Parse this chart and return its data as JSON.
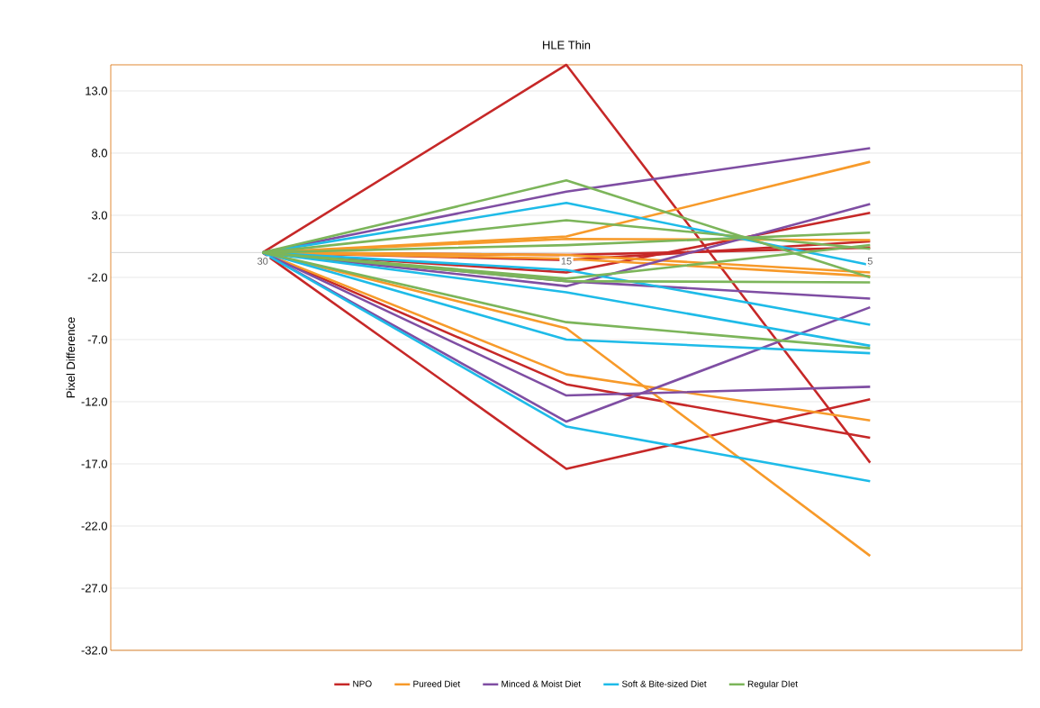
{
  "chart_data": {
    "type": "line",
    "title": "HLE Thin",
    "ylabel": "Pixel Difference",
    "categories": [
      "30",
      "15",
      "5"
    ],
    "series": [
      {
        "name": "NPO",
        "color": "#c62828",
        "values": [
          0,
          15.1,
          -16.9
        ]
      },
      {
        "color": "#c62828",
        "values": [
          0,
          -17.4,
          -11.8
        ]
      },
      {
        "color": "#c62828",
        "values": [
          0,
          -10.6,
          -14.9
        ]
      },
      {
        "color": "#c62828",
        "values": [
          0,
          -1.6,
          3.2
        ]
      },
      {
        "color": "#c62828",
        "values": [
          0,
          -0.6,
          0.9
        ]
      },
      {
        "color": "#c62828",
        "values": [
          0,
          -0.2,
          0.4
        ]
      },
      {
        "name": "Pureed Diet",
        "color": "#f79a2a",
        "values": [
          0,
          1.3,
          7.3
        ]
      },
      {
        "color": "#f79a2a",
        "values": [
          0,
          -6.1,
          -24.4
        ]
      },
      {
        "color": "#f79a2a",
        "values": [
          0,
          -9.8,
          -13.5
        ]
      },
      {
        "color": "#f79a2a",
        "values": [
          0,
          1.1,
          1.0
        ]
      },
      {
        "color": "#f79a2a",
        "values": [
          0,
          -0.2,
          -1.6
        ]
      },
      {
        "color": "#f79a2a",
        "values": [
          0,
          -0.5,
          -1.9
        ]
      },
      {
        "name": "Minced & Moist Diet",
        "color": "#7f4ea3",
        "values": [
          0,
          4.9,
          8.4
        ]
      },
      {
        "color": "#7f4ea3",
        "values": [
          0,
          -2.7,
          3.9
        ]
      },
      {
        "color": "#7f4ea3",
        "values": [
          0,
          -13.6,
          -4.4
        ]
      },
      {
        "color": "#7f4ea3",
        "values": [
          0,
          -11.5,
          -10.8
        ]
      },
      {
        "color": "#7f4ea3",
        "values": [
          0,
          -2.3,
          -3.7
        ]
      },
      {
        "name": "Soft & Bite-sized Diet",
        "color": "#1ebbe8",
        "values": [
          0,
          4.0,
          -1.0
        ]
      },
      {
        "color": "#1ebbe8",
        "values": [
          0,
          -7.0,
          -8.1
        ]
      },
      {
        "color": "#1ebbe8",
        "values": [
          0,
          -14.0,
          -18.4
        ]
      },
      {
        "color": "#1ebbe8",
        "values": [
          0,
          -1.4,
          -5.8
        ]
      },
      {
        "color": "#1ebbe8",
        "values": [
          0,
          -3.2,
          -7.5
        ]
      },
      {
        "name": "Regular DIet",
        "color": "#7cb55a",
        "values": [
          0,
          5.8,
          -2.0
        ]
      },
      {
        "color": "#7cb55a",
        "values": [
          0,
          2.6,
          0.3
        ]
      },
      {
        "color": "#7cb55a",
        "values": [
          0,
          -5.6,
          -7.7
        ]
      },
      {
        "color": "#7cb55a",
        "values": [
          0,
          0.6,
          1.6
        ]
      },
      {
        "color": "#7cb55a",
        "values": [
          0,
          -2.1,
          0.6
        ]
      },
      {
        "color": "#7cb55a",
        "values": [
          0,
          -2.3,
          -2.4
        ]
      }
    ],
    "ylim": [
      -32,
      15.1
    ],
    "yticks": [
      {
        "value": 13,
        "label": "13.0"
      },
      {
        "value": 8,
        "label": "8.0"
      },
      {
        "value": 3,
        "label": "3.0"
      },
      {
        "value": -2,
        "label": "-2.0"
      },
      {
        "value": -7,
        "label": "-7.0"
      },
      {
        "value": -12,
        "label": "-12.0"
      },
      {
        "value": -17,
        "label": "-17.0"
      },
      {
        "value": -22,
        "label": "-22.0"
      },
      {
        "value": -27,
        "label": "-27.0"
      },
      {
        "value": -32,
        "label": "-32.0"
      }
    ],
    "grid": "y",
    "legend": "bottom"
  }
}
